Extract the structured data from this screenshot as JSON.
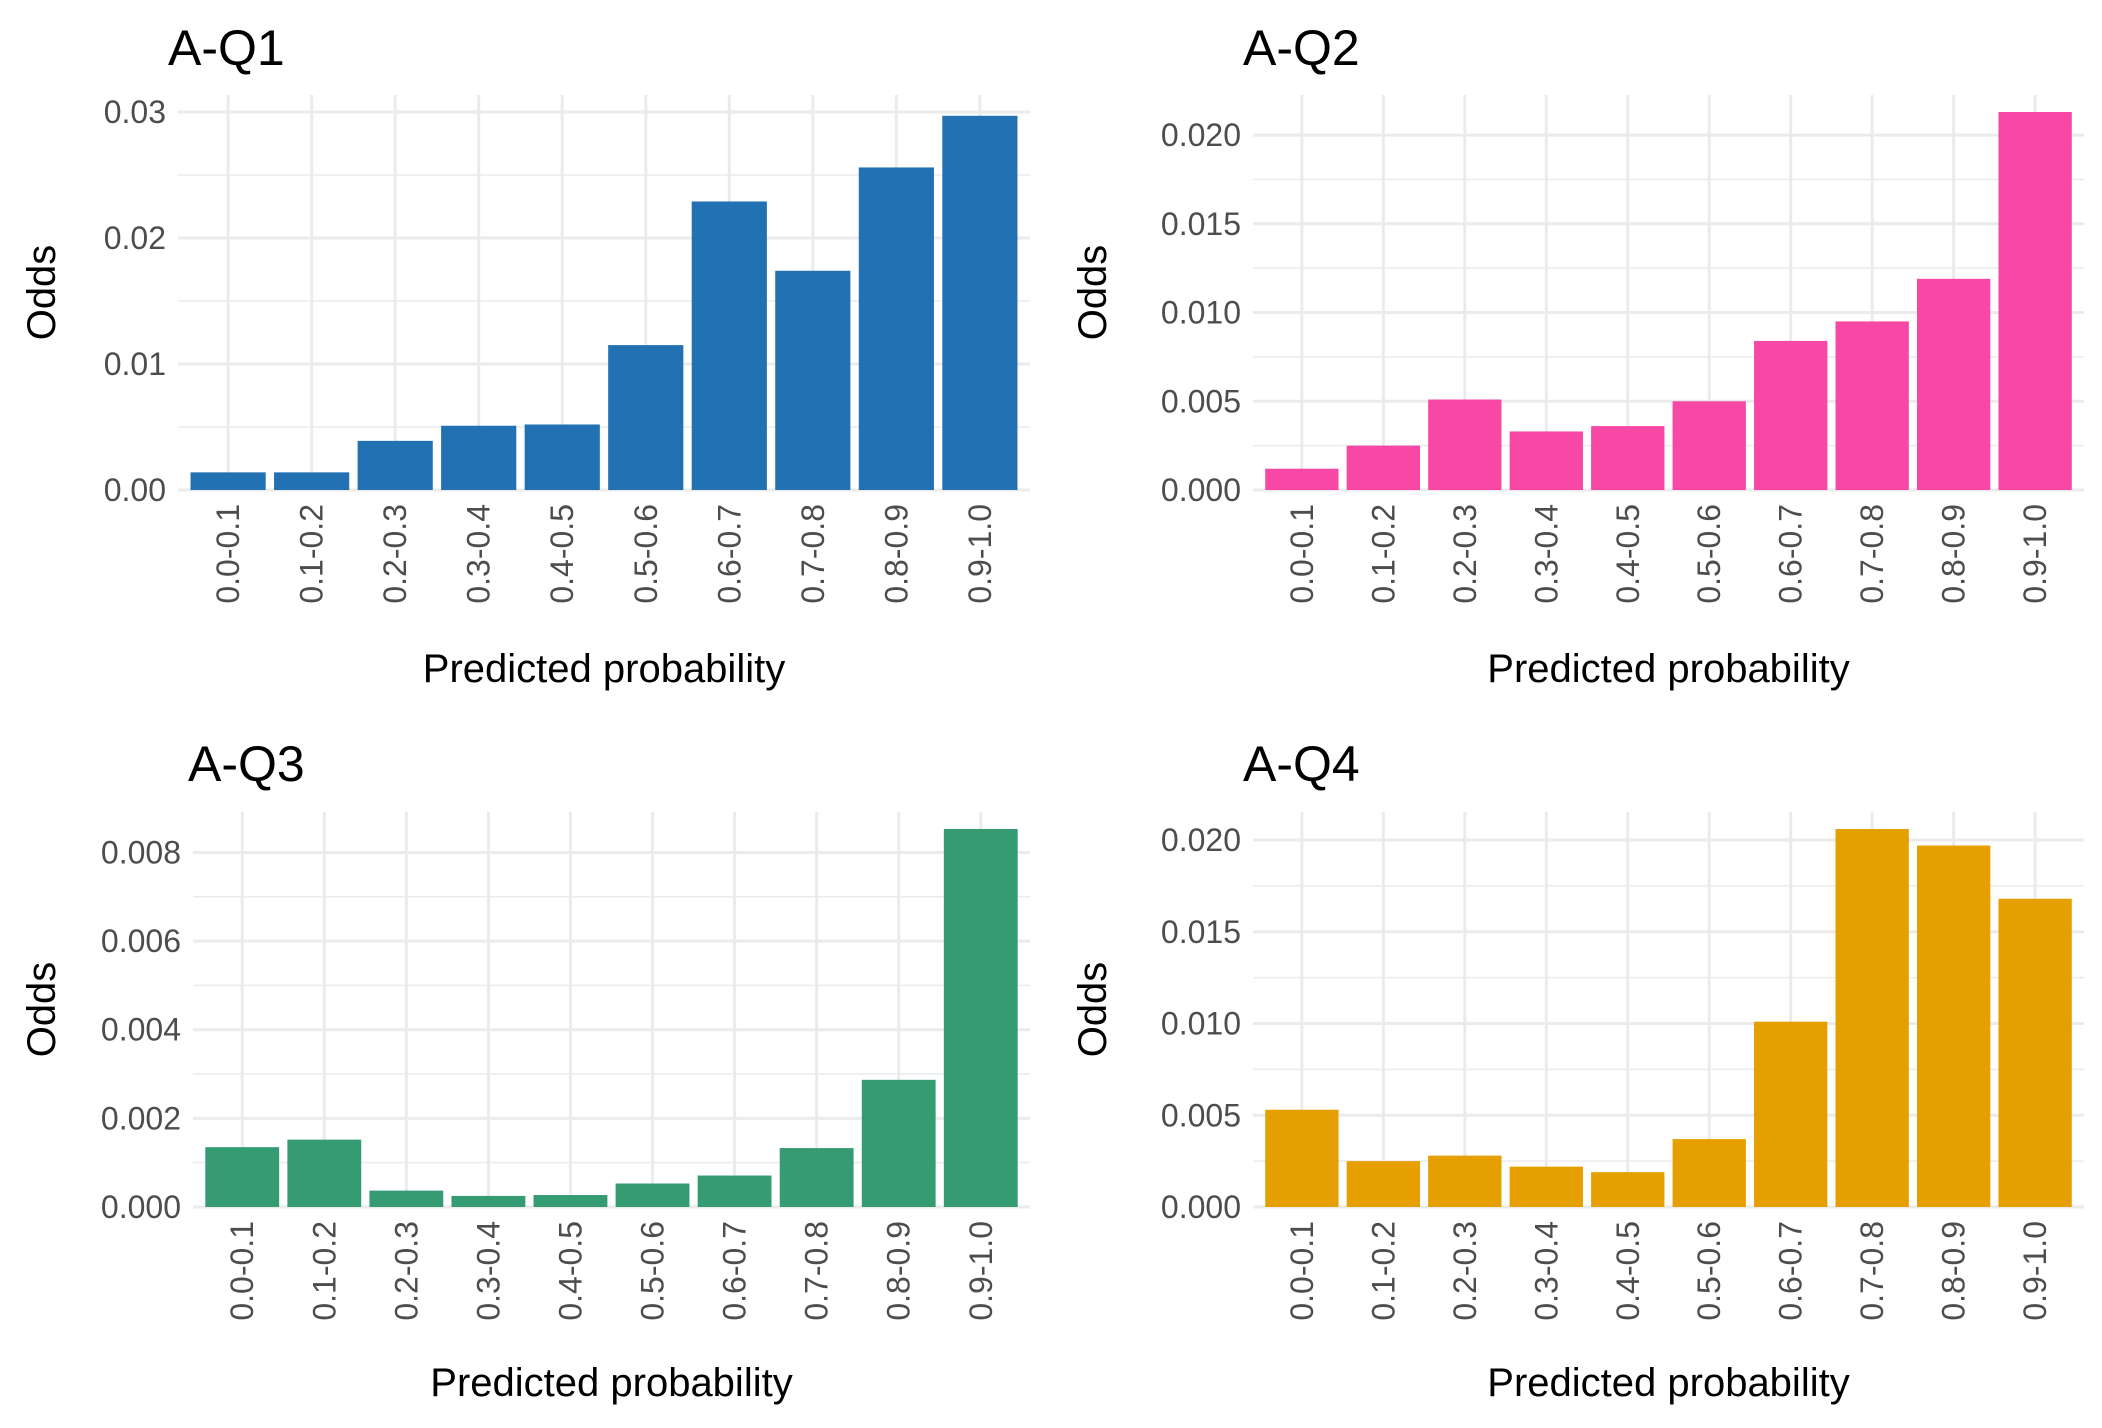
{
  "chart_data": [
    {
      "type": "bar",
      "title": "A-Q1",
      "xlabel": "Predicted probability",
      "ylabel": "Odds",
      "categories": [
        "0.0-0.1",
        "0.1-0.2",
        "0.2-0.3",
        "0.3-0.4",
        "0.4-0.5",
        "0.5-0.6",
        "0.6-0.7",
        "0.7-0.8",
        "0.8-0.9",
        "0.9-1.0"
      ],
      "values": [
        0.0014,
        0.0014,
        0.0039,
        0.0051,
        0.0052,
        0.0115,
        0.0229,
        0.0174,
        0.0256,
        0.0297
      ],
      "ylim": [
        0,
        0.03
      ],
      "yticks": [
        0,
        0.01,
        0.02,
        0.03
      ],
      "ytick_labels": [
        "0.00",
        "0.01",
        "0.02",
        "0.03"
      ],
      "color": "#2271b2",
      "grid": true
    },
    {
      "type": "bar",
      "title": "A-Q2",
      "xlabel": "Predicted probability",
      "ylabel": "Odds",
      "categories": [
        "0.0-0.1",
        "0.1-0.2",
        "0.2-0.3",
        "0.3-0.4",
        "0.4-0.5",
        "0.5-0.6",
        "0.6-0.7",
        "0.7-0.8",
        "0.8-0.9",
        "0.9-1.0"
      ],
      "values": [
        0.0012,
        0.0025,
        0.0051,
        0.0033,
        0.0036,
        0.005,
        0.0084,
        0.0095,
        0.0119,
        0.0213
      ],
      "ylim": [
        0,
        0.02
      ],
      "yticks": [
        0,
        0.005,
        0.01,
        0.015,
        0.02
      ],
      "ytick_labels": [
        "0.000",
        "0.005",
        "0.010",
        "0.015",
        "0.020"
      ],
      "color": "#f748a5",
      "grid": true
    },
    {
      "type": "bar",
      "title": "A-Q3",
      "xlabel": "Predicted probability",
      "ylabel": "Odds",
      "categories": [
        "0.0-0.1",
        "0.1-0.2",
        "0.2-0.3",
        "0.3-0.4",
        "0.4-0.5",
        "0.5-0.6",
        "0.6-0.7",
        "0.7-0.8",
        "0.8-0.9",
        "0.9-1.0"
      ],
      "values": [
        0.00135,
        0.00152,
        0.00037,
        0.00025,
        0.00027,
        0.00053,
        0.00071,
        0.00133,
        0.00287,
        0.00853
      ],
      "ylim": [
        0,
        0.008
      ],
      "yticks": [
        0,
        0.002,
        0.004,
        0.006,
        0.008
      ],
      "ytick_labels": [
        "0.000",
        "0.002",
        "0.004",
        "0.006",
        "0.008"
      ],
      "color": "#359b73",
      "grid": true
    },
    {
      "type": "bar",
      "title": "A-Q4",
      "xlabel": "Predicted probability",
      "ylabel": "Odds",
      "categories": [
        "0.0-0.1",
        "0.1-0.2",
        "0.2-0.3",
        "0.3-0.4",
        "0.4-0.5",
        "0.5-0.6",
        "0.6-0.7",
        "0.7-0.8",
        "0.8-0.9",
        "0.9-1.0"
      ],
      "values": [
        0.0053,
        0.0025,
        0.0028,
        0.0022,
        0.0019,
        0.0037,
        0.0101,
        0.0206,
        0.0197,
        0.0168
      ],
      "ylim": [
        0,
        0.02
      ],
      "yticks": [
        0,
        0.005,
        0.01,
        0.015,
        0.02
      ],
      "ytick_labels": [
        "0.000",
        "0.005",
        "0.010",
        "0.015",
        "0.020"
      ],
      "color": "#e69f00",
      "grid": true
    }
  ]
}
